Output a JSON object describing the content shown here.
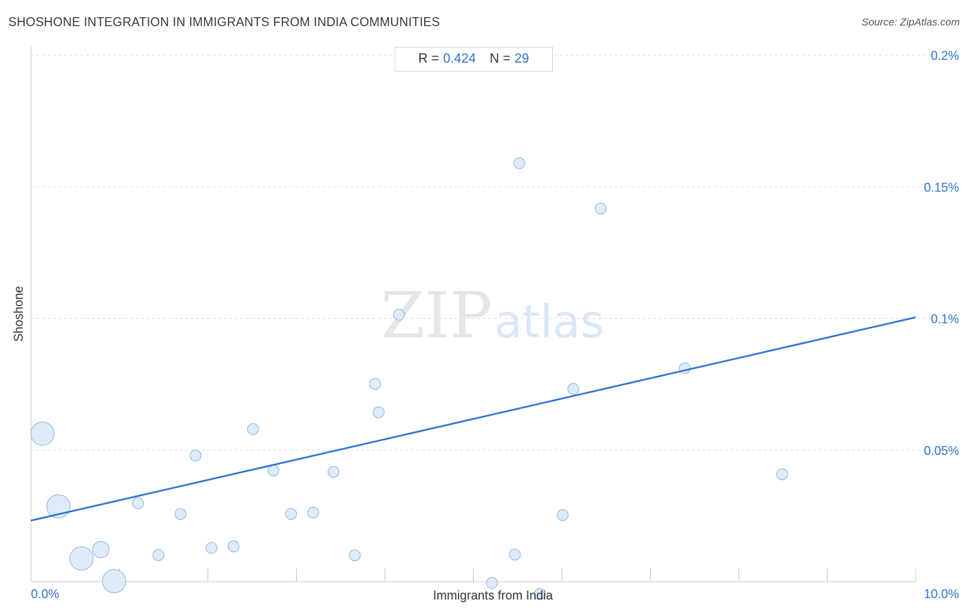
{
  "header": {
    "title": "SHOSHONE INTEGRATION IN IMMIGRANTS FROM INDIA COMMUNITIES",
    "source": "Source: ZipAtlas.com"
  },
  "stats": {
    "r_label": "R =",
    "r_value": "0.424",
    "n_label": "N =",
    "n_value": "29"
  },
  "watermark": {
    "zip": "ZIP",
    "atlas": "atlas"
  },
  "colors": {
    "accent": "#2f74d0",
    "point_fill": "#d9e7f8",
    "point_stroke": "#8fb4e3",
    "grid": "#dddddd",
    "axis": "#c8c8c8"
  },
  "chart_data": {
    "type": "scatter",
    "xlabel": "Immigrants from India",
    "ylabel": "Shoshone",
    "xlim": [
      0,
      10
    ],
    "ylim": [
      0,
      0.2
    ],
    "x_tick_labels": [
      "0.0%",
      "10.0%"
    ],
    "y_ticks": [
      0.05,
      0.1,
      0.15,
      0.2
    ],
    "y_tick_labels": [
      "0.05%",
      "0.1%",
      "0.15%",
      "0.2%"
    ],
    "grid": "horizontal dashed",
    "trend_line": {
      "x": [
        0,
        10
      ],
      "y": [
        0.0232,
        0.1004
      ]
    },
    "points": [
      {
        "x": 0.13,
        "y": 0.0562,
        "size": "large"
      },
      {
        "x": 0.31,
        "y": 0.0286,
        "size": "large"
      },
      {
        "x": 0.57,
        "y": 0.0088,
        "size": "large"
      },
      {
        "x": 0.79,
        "y": 0.0122,
        "size": "medium"
      },
      {
        "x": 0.94,
        "y": 0.0002,
        "size": "large"
      },
      {
        "x": 1.21,
        "y": 0.0298,
        "size": "small"
      },
      {
        "x": 1.44,
        "y": 0.0101,
        "size": "small"
      },
      {
        "x": 1.69,
        "y": 0.0257,
        "size": "small"
      },
      {
        "x": 1.86,
        "y": 0.0479,
        "size": "small"
      },
      {
        "x": 2.04,
        "y": 0.0128,
        "size": "small"
      },
      {
        "x": 2.29,
        "y": 0.0134,
        "size": "small"
      },
      {
        "x": 2.51,
        "y": 0.0579,
        "size": "small"
      },
      {
        "x": 2.74,
        "y": 0.0422,
        "size": "small"
      },
      {
        "x": 2.94,
        "y": 0.0257,
        "size": "small"
      },
      {
        "x": 3.19,
        "y": 0.0262,
        "size": "small"
      },
      {
        "x": 3.42,
        "y": 0.0417,
        "size": "small"
      },
      {
        "x": 3.66,
        "y": 0.01,
        "size": "small"
      },
      {
        "x": 3.89,
        "y": 0.0751,
        "size": "small"
      },
      {
        "x": 3.93,
        "y": 0.0643,
        "size": "small"
      },
      {
        "x": 4.16,
        "y": 0.1014,
        "size": "small"
      },
      {
        "x": 5.21,
        "y": -0.0005,
        "size": "small"
      },
      {
        "x": 5.47,
        "y": 0.0103,
        "size": "small"
      },
      {
        "x": 5.75,
        "y": -0.0047,
        "size": "small"
      },
      {
        "x": 5.52,
        "y": 0.1589,
        "size": "small"
      },
      {
        "x": 6.01,
        "y": 0.0253,
        "size": "small"
      },
      {
        "x": 6.13,
        "y": 0.0732,
        "size": "small"
      },
      {
        "x": 6.44,
        "y": 0.1417,
        "size": "small"
      },
      {
        "x": 7.39,
        "y": 0.081,
        "size": "small"
      },
      {
        "x": 8.49,
        "y": 0.0408,
        "size": "small"
      }
    ]
  }
}
